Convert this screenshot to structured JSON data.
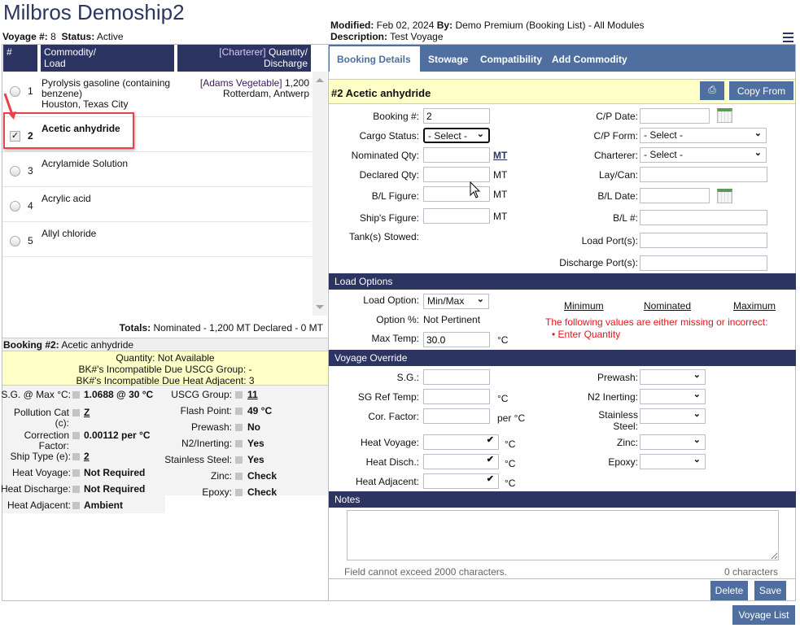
{
  "title": "Milbros Demoship2",
  "voyage": {
    "num_label": "Voyage #:",
    "num": "8",
    "status_label": "Status:",
    "status": "Active"
  },
  "meta": {
    "modified_label": "Modified:",
    "modified": "Feb 02, 2024",
    "by_label": "By:",
    "by": "Demo Premium (Booking List) - All Modules",
    "desc_label": "Description:",
    "desc": "Test Voyage"
  },
  "list": {
    "headers": {
      "num": "#",
      "commodity": "Commodity/",
      "load": "Load",
      "charterer": "[Charterer]",
      "quantity": "Quantity/",
      "discharge": "Discharge"
    },
    "rows": [
      {
        "num": "1",
        "commodity": "Pyrolysis gasoline (containing benzene)",
        "load": "Houston, Texas City",
        "charterer": "[Adams Vegetable]",
        "quantity": "1,200",
        "discharge": "Rotterdam, Antwerp",
        "selected": false
      },
      {
        "num": "2",
        "commodity": "Acetic anhydride",
        "selected": true
      },
      {
        "num": "3",
        "commodity": "Acrylamide Solution",
        "selected": false
      },
      {
        "num": "4",
        "commodity": "Acrylic acid",
        "selected": false
      },
      {
        "num": "5",
        "commodity": "Allyl chloride",
        "selected": false
      }
    ],
    "totals_label": "Totals:",
    "totals": "Nominated - 1,200 MT Declared - 0 MT"
  },
  "booking": {
    "label": "Booking #2:",
    "name": "Acetic anhydride",
    "notice": [
      "Quantity: Not Available",
      "BK#'s Incompatible Due USCG Group: -",
      "BK#'s Incompatible Due Heat Adjacent: 3"
    ],
    "left": [
      {
        "label": "S.G. @ Max °C:",
        "value": "1.0688 @ 30 °C"
      },
      {
        "label": "Pollution Cat (c):",
        "value": "Z",
        "link": true
      },
      {
        "label": "Correction Factor:",
        "value": "0.00112 per °C"
      },
      {
        "label": "Ship Type (e):",
        "value": "2",
        "link": true
      },
      {
        "label": "Heat Voyage:",
        "value": "Not Required"
      },
      {
        "label": "Heat Discharge:",
        "value": "Not Required"
      },
      {
        "label": "Heat Adjacent:",
        "value": "Ambient"
      }
    ],
    "right": [
      {
        "label": "USCG Group:",
        "value": "11",
        "link": true
      },
      {
        "label": "Flash Point:",
        "value": "49 °C"
      },
      {
        "label": "Prewash:",
        "value": "No"
      },
      {
        "label": "N2/Inerting:",
        "value": "Yes"
      },
      {
        "label": "Stainless Steel:",
        "value": "Yes"
      },
      {
        "label": "Zinc:",
        "value": "Check"
      },
      {
        "label": "Epoxy:",
        "value": "Check"
      }
    ]
  },
  "tabs": [
    {
      "label": "Booking Details",
      "active": true
    },
    {
      "label": "Stowage"
    },
    {
      "label": "Compatibility"
    },
    {
      "label": "Add Commodity"
    }
  ],
  "detail": {
    "heading": "#2 Acetic anhydride",
    "copy_from": "Copy From",
    "booking_num_label": "Booking #:",
    "booking_num": "2",
    "cargo_status_label": "Cargo Status:",
    "cargo_status": "- Select -",
    "nominated_label": "Nominated Qty:",
    "declared_label": "Declared Qty:",
    "bl_figure_label": "B/L Figure:",
    "ships_figure_label": "Ship's Figure:",
    "tanks_label": "Tank(s) Stowed:",
    "unit": "MT",
    "cp_date_label": "C/P Date:",
    "cp_form_label": "C/P Form:",
    "cp_form": "- Select -",
    "charterer_label": "Charterer:",
    "charterer": "- Select -",
    "laycan_label": "Lay/Can:",
    "bl_date_label": "B/L Date:",
    "bl_num_label": "B/L #:",
    "load_ports_label": "Load Port(s):",
    "discharge_ports_label": "Discharge Port(s):"
  },
  "load_options": {
    "header": "Load Options",
    "load_option_label": "Load Option:",
    "load_option": "Min/Max",
    "option_pct_label": "Option %:",
    "option_pct": "Not Pertinent",
    "max_temp_label": "Max Temp:",
    "max_temp": "30.0",
    "deg": "°C",
    "minimum": "Minimum",
    "nominated": "Nominated",
    "maximum": "Maximum",
    "error": "The following values are either missing or incorrect:",
    "error_item": "Enter Quantity",
    "error_color": "#e8141c"
  },
  "override": {
    "header": "Voyage Override",
    "sg": "S.G.:",
    "sg_ref": "SG Ref Temp:",
    "cor": "Cor. Factor:",
    "per": "per °C",
    "deg": "°C",
    "heat_voyage": "Heat Voyage:",
    "heat_disch": "Heat Disch.:",
    "heat_adj": "Heat Adjacent:",
    "prewash": "Prewash:",
    "n2": "N2 Inerting:",
    "stainless": "Stainless Steel:",
    "zinc": "Zinc:",
    "epoxy": "Epoxy:"
  },
  "notes": {
    "header": "Notes",
    "hint": "Field cannot exceed 2000 characters.",
    "count": "0 characters"
  },
  "buttons": {
    "delete": "Delete",
    "save": "Save",
    "voyage_list": "Voyage List"
  },
  "colors": {
    "navy": "#2c3462",
    "tab_blue": "#4e6f9f",
    "yellow": "#ffffc8",
    "highlight": "#e8434a"
  }
}
